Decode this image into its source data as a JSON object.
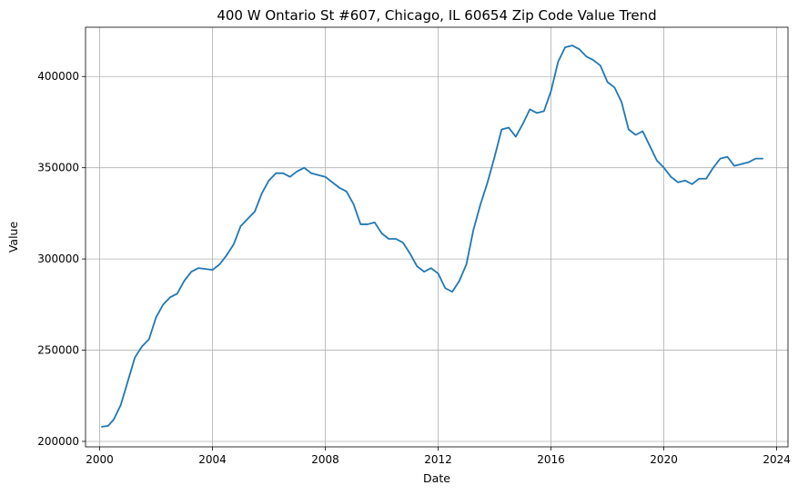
{
  "chart_data": {
    "type": "line",
    "title": "400 W Ontario St #607, Chicago, IL 60654 Zip Code Value Trend",
    "xlabel": "Date",
    "ylabel": "Value",
    "xlim": [
      1999.5,
      2024.4
    ],
    "ylim": [
      197000,
      427000
    ],
    "grid": true,
    "x_ticks": [
      {
        "value": 2000,
        "label": "2000"
      },
      {
        "value": 2004,
        "label": "2004"
      },
      {
        "value": 2008,
        "label": "2008"
      },
      {
        "value": 2012,
        "label": "2012"
      },
      {
        "value": 2016,
        "label": "2016"
      },
      {
        "value": 2020,
        "label": "2020"
      },
      {
        "value": 2024,
        "label": "2024"
      }
    ],
    "y_ticks": [
      {
        "value": 200000,
        "label": "200000"
      },
      {
        "value": 250000,
        "label": "250000"
      },
      {
        "value": 300000,
        "label": "300000"
      },
      {
        "value": 350000,
        "label": "350000"
      },
      {
        "value": 400000,
        "label": "400000"
      }
    ],
    "series": [
      {
        "color": "#1f77b4",
        "x": [
          2000.08,
          2000.3,
          2000.5,
          2000.75,
          2001.0,
          2001.25,
          2001.5,
          2001.75,
          2002.0,
          2002.25,
          2002.5,
          2002.75,
          2003.0,
          2003.25,
          2003.5,
          2003.75,
          2004.0,
          2004.25,
          2004.5,
          2004.75,
          2005.0,
          2005.25,
          2005.5,
          2005.75,
          2006.0,
          2006.25,
          2006.5,
          2006.75,
          2007.0,
          2007.25,
          2007.5,
          2007.75,
          2008.0,
          2008.25,
          2008.5,
          2008.75,
          2009.0,
          2009.25,
          2009.5,
          2009.75,
          2010.0,
          2010.25,
          2010.5,
          2010.75,
          2011.0,
          2011.25,
          2011.5,
          2011.75,
          2012.0,
          2012.25,
          2012.5,
          2012.75,
          2013.0,
          2013.25,
          2013.5,
          2013.75,
          2014.0,
          2014.25,
          2014.5,
          2014.75,
          2015.0,
          2015.25,
          2015.5,
          2015.75,
          2016.0,
          2016.25,
          2016.5,
          2016.75,
          2017.0,
          2017.25,
          2017.5,
          2017.75,
          2018.0,
          2018.25,
          2018.5,
          2018.75,
          2019.0,
          2019.25,
          2019.5,
          2019.75,
          2020.0,
          2020.25,
          2020.5,
          2020.75,
          2021.0,
          2021.25,
          2021.5,
          2021.75,
          2022.0,
          2022.25,
          2022.5,
          2022.75,
          2023.0,
          2023.25,
          2023.5
        ],
        "y": [
          208000,
          208500,
          212000,
          220000,
          233000,
          246000,
          252000,
          256000,
          268000,
          275000,
          279000,
          281000,
          288000,
          293000,
          295000,
          294500,
          294000,
          297000,
          302000,
          308000,
          318000,
          322000,
          326000,
          336000,
          343000,
          347000,
          347000,
          345000,
          348000,
          350000,
          347000,
          346000,
          345000,
          342000,
          339000,
          337000,
          330000,
          319000,
          319000,
          320000,
          314000,
          311000,
          311000,
          309000,
          303000,
          296000,
          293000,
          295000,
          292000,
          284000,
          282000,
          288000,
          297000,
          316000,
          330000,
          342000,
          356000,
          371000,
          372000,
          367000,
          374000,
          382000,
          380000,
          381000,
          392000,
          408000,
          416000,
          417000,
          415000,
          411000,
          409000,
          406000,
          397000,
          394000,
          386000,
          371000,
          368000,
          370000,
          362000,
          354000,
          350000,
          345000,
          342000,
          343000,
          341000,
          344000,
          344000,
          350000,
          355000,
          356000,
          351000,
          352000,
          353000,
          355000,
          355000
        ]
      }
    ]
  }
}
